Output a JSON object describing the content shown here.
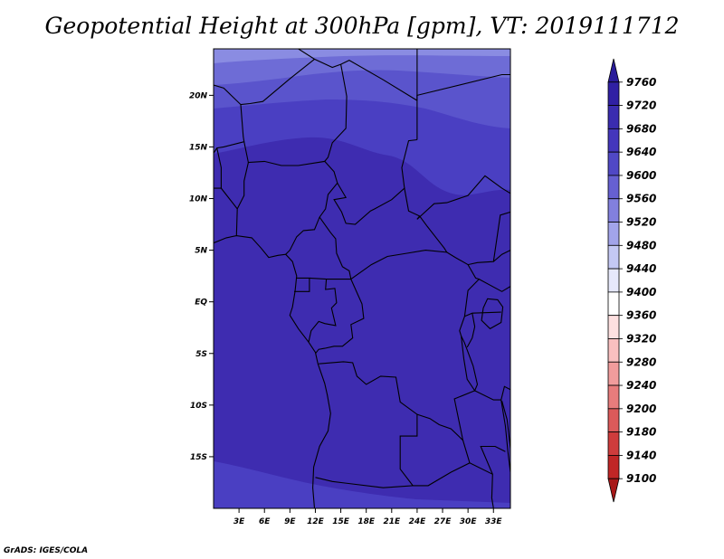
{
  "title": "Geopotential Height at 300hPa [gpm], VT: 2019111712",
  "credit": "GrADS: IGES/COLA",
  "chart_data": {
    "type": "heatmap",
    "variable": "Geopotential Height at 300hPa",
    "units": "gpm",
    "valid_time": "2019111712",
    "lon_range": [
      0,
      35
    ],
    "lat_range": [
      -20,
      24.5
    ],
    "lon_ticks": [
      "3E",
      "6E",
      "9E",
      "12E",
      "15E",
      "18E",
      "21E",
      "24E",
      "27E",
      "30E",
      "33E"
    ],
    "lon_tick_values": [
      3,
      6,
      9,
      12,
      15,
      18,
      21,
      24,
      27,
      30,
      33
    ],
    "lat_ticks": [
      "20N",
      "15N",
      "10N",
      "5N",
      "EQ",
      "5S",
      "10S",
      "15S"
    ],
    "lat_tick_values": [
      20,
      15,
      10,
      5,
      0,
      -5,
      -10,
      -15
    ],
    "field_bands": [
      {
        "value_range": [
          9720,
          9760
        ],
        "color": "#3e2cb0",
        "region": "bulk tropics"
      },
      {
        "value_range": [
          9680,
          9720
        ],
        "color": "#4a3fc2",
        "region": "north of ~16N and south of ~-16S"
      },
      {
        "value_range": [
          9640,
          9680
        ],
        "color": "#5a54cc",
        "region": "~19N-21N"
      },
      {
        "value_range": [
          9600,
          9640
        ],
        "color": "#6e6cd6",
        "region": "~21N-23N"
      },
      {
        "value_range": [
          9560,
          9600
        ],
        "color": "#8a8ce2",
        "region": "northern edge"
      }
    ]
  },
  "colorbar": {
    "labels": [
      "9760",
      "9720",
      "9680",
      "9640",
      "9600",
      "9560",
      "9520",
      "9480",
      "9440",
      "9400",
      "9360",
      "9320",
      "9280",
      "9240",
      "9200",
      "9180",
      "9140",
      "9100"
    ],
    "colors": [
      "#2a1c9a",
      "#3020a4",
      "#3a2cb0",
      "#4436bc",
      "#5048c6",
      "#6660d2",
      "#8280de",
      "#a2a4ea",
      "#c4c8f4",
      "#e6e8fb",
      "#ffffff",
      "#fde0e0",
      "#f9c0c0",
      "#f19c9c",
      "#e77c7c",
      "#dc5a5a",
      "#cf3c3c",
      "#c02626",
      "#a81818"
    ]
  }
}
